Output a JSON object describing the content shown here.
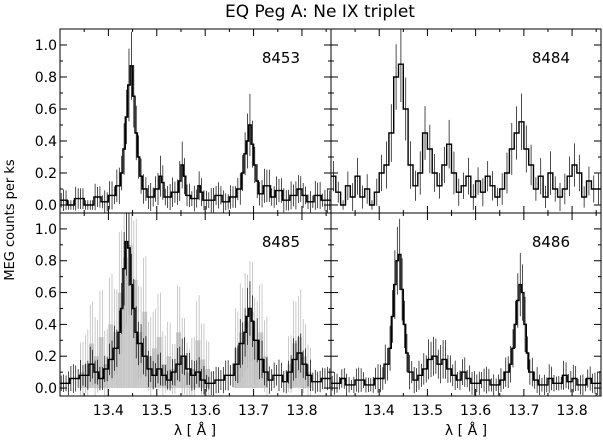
{
  "figure": {
    "title": "EQ Peg A: Ne IX triplet",
    "xlabel": "λ [ Å ]",
    "ylabel": "MEG counts per ks"
  },
  "chart_data": [
    {
      "type": "bar",
      "panel": "top-left",
      "label": "8453",
      "xlim": [
        13.3,
        13.86
      ],
      "ylim": [
        -0.05,
        1.1
      ],
      "yticks": [
        "0.0",
        "0.2",
        "0.4",
        "0.6",
        "0.8",
        "1.0"
      ],
      "xticks": [],
      "bin_width": 0.005,
      "segments": [
        [
          13.3,
          13.315,
          0.03
        ],
        [
          13.315,
          13.33,
          0.0
        ],
        [
          13.33,
          13.35,
          0.04
        ],
        [
          13.35,
          13.37,
          0.0
        ],
        [
          13.37,
          13.385,
          0.05
        ],
        [
          13.385,
          13.4,
          0.02
        ],
        [
          13.4,
          13.415,
          0.06
        ],
        [
          13.415,
          13.425,
          0.12
        ],
        [
          13.425,
          13.43,
          0.2
        ],
        [
          13.43,
          13.435,
          0.35
        ],
        [
          13.435,
          13.44,
          0.55
        ],
        [
          13.44,
          13.445,
          0.75
        ],
        [
          13.445,
          13.45,
          0.87
        ],
        [
          13.45,
          13.455,
          0.68
        ],
        [
          13.455,
          13.46,
          0.45
        ],
        [
          13.46,
          13.465,
          0.3
        ],
        [
          13.465,
          13.47,
          0.18
        ],
        [
          13.47,
          13.48,
          0.1
        ],
        [
          13.48,
          13.495,
          0.05
        ],
        [
          13.495,
          13.505,
          0.1
        ],
        [
          13.505,
          13.51,
          0.18
        ],
        [
          13.51,
          13.515,
          0.14
        ],
        [
          13.515,
          13.53,
          0.05
        ],
        [
          13.53,
          13.545,
          0.08
        ],
        [
          13.545,
          13.55,
          0.15
        ],
        [
          13.55,
          13.555,
          0.25
        ],
        [
          13.555,
          13.56,
          0.18
        ],
        [
          13.56,
          13.57,
          0.06
        ],
        [
          13.57,
          13.585,
          0.04
        ],
        [
          13.585,
          13.59,
          0.12
        ],
        [
          13.59,
          13.595,
          0.08
        ],
        [
          13.595,
          13.62,
          0.03
        ],
        [
          13.62,
          13.635,
          0.06
        ],
        [
          13.635,
          13.65,
          0.02
        ],
        [
          13.65,
          13.665,
          0.05
        ],
        [
          13.665,
          13.675,
          0.1
        ],
        [
          13.675,
          13.68,
          0.2
        ],
        [
          13.68,
          13.685,
          0.32
        ],
        [
          13.685,
          13.69,
          0.4
        ],
        [
          13.69,
          13.695,
          0.5
        ],
        [
          13.695,
          13.7,
          0.38
        ],
        [
          13.7,
          13.705,
          0.25
        ],
        [
          13.705,
          13.71,
          0.15
        ],
        [
          13.71,
          13.72,
          0.07
        ],
        [
          13.72,
          13.735,
          0.12
        ],
        [
          13.735,
          13.745,
          0.05
        ],
        [
          13.745,
          13.76,
          0.09
        ],
        [
          13.76,
          13.775,
          0.03
        ],
        [
          13.775,
          13.79,
          0.06
        ],
        [
          13.79,
          13.8,
          0.1
        ],
        [
          13.8,
          13.81,
          0.06
        ],
        [
          13.81,
          13.825,
          0.02
        ],
        [
          13.825,
          13.84,
          0.06
        ],
        [
          13.84,
          13.86,
          0.03
        ]
      ]
    },
    {
      "type": "bar",
      "panel": "top-right",
      "label": "8484",
      "xlim": [
        13.3,
        13.86
      ],
      "ylim": [
        -0.05,
        1.1
      ],
      "yticks": [],
      "xticks": [],
      "bin_width": 0.01,
      "segments": [
        [
          13.3,
          13.31,
          0.18
        ],
        [
          13.31,
          13.32,
          0.08
        ],
        [
          13.32,
          13.33,
          0.0
        ],
        [
          13.33,
          13.34,
          0.12
        ],
        [
          13.34,
          13.35,
          0.05
        ],
        [
          13.35,
          13.36,
          0.18
        ],
        [
          13.36,
          13.37,
          0.05
        ],
        [
          13.37,
          13.38,
          0.1
        ],
        [
          13.38,
          13.39,
          0.0
        ],
        [
          13.39,
          13.4,
          0.08
        ],
        [
          13.4,
          13.41,
          0.2
        ],
        [
          13.41,
          13.42,
          0.25
        ],
        [
          13.42,
          13.43,
          0.45
        ],
        [
          13.43,
          13.44,
          0.8
        ],
        [
          13.44,
          13.45,
          0.88
        ],
        [
          13.45,
          13.46,
          0.6
        ],
        [
          13.46,
          13.47,
          0.25
        ],
        [
          13.47,
          13.48,
          0.12
        ],
        [
          13.48,
          13.49,
          0.2
        ],
        [
          13.49,
          13.5,
          0.45
        ],
        [
          13.5,
          13.51,
          0.35
        ],
        [
          13.51,
          13.52,
          0.2
        ],
        [
          13.52,
          13.53,
          0.12
        ],
        [
          13.53,
          13.54,
          0.25
        ],
        [
          13.54,
          13.55,
          0.38
        ],
        [
          13.55,
          13.56,
          0.2
        ],
        [
          13.56,
          13.57,
          0.08
        ],
        [
          13.57,
          13.58,
          0.12
        ],
        [
          13.58,
          13.59,
          0.18
        ],
        [
          13.59,
          13.6,
          0.05
        ],
        [
          13.6,
          13.61,
          0.15
        ],
        [
          13.61,
          13.62,
          0.08
        ],
        [
          13.62,
          13.63,
          0.18
        ],
        [
          13.63,
          13.64,
          0.12
        ],
        [
          13.64,
          13.65,
          0.05
        ],
        [
          13.65,
          13.66,
          0.1
        ],
        [
          13.66,
          13.67,
          0.2
        ],
        [
          13.67,
          13.68,
          0.35
        ],
        [
          13.68,
          13.69,
          0.45
        ],
        [
          13.69,
          13.7,
          0.52
        ],
        [
          13.7,
          13.71,
          0.35
        ],
        [
          13.71,
          13.72,
          0.25
        ],
        [
          13.72,
          13.73,
          0.1
        ],
        [
          13.73,
          13.74,
          0.18
        ],
        [
          13.74,
          13.75,
          0.05
        ],
        [
          13.75,
          13.76,
          0.2
        ],
        [
          13.76,
          13.77,
          0.1
        ],
        [
          13.77,
          13.78,
          0.05
        ],
        [
          13.78,
          13.79,
          0.1
        ],
        [
          13.79,
          13.8,
          0.18
        ],
        [
          13.8,
          13.81,
          0.25
        ],
        [
          13.81,
          13.82,
          0.2
        ],
        [
          13.82,
          13.83,
          0.05
        ],
        [
          13.83,
          13.84,
          0.15
        ],
        [
          13.84,
          13.86,
          0.1
        ]
      ]
    },
    {
      "type": "bar",
      "panel": "bottom-left",
      "label": "8485",
      "xlim": [
        13.3,
        13.86
      ],
      "ylim": [
        -0.05,
        1.1
      ],
      "yticks": [
        "0.0",
        "0.2",
        "0.4",
        "0.6",
        "0.8",
        "1.0"
      ],
      "xticks": [
        "13.4",
        "13.5",
        "13.6",
        "13.7",
        "13.8"
      ],
      "bin_width": 0.005,
      "background_segments": [
        [
          13.3,
          13.34,
          0.0
        ],
        [
          13.34,
          13.35,
          0.1
        ],
        [
          13.35,
          13.36,
          0.15
        ],
        [
          13.36,
          13.37,
          0.28
        ],
        [
          13.37,
          13.38,
          0.2
        ],
        [
          13.38,
          13.39,
          0.32
        ],
        [
          13.39,
          13.4,
          0.15
        ],
        [
          13.4,
          13.41,
          0.4
        ],
        [
          13.41,
          13.42,
          0.35
        ],
        [
          13.42,
          13.43,
          0.6
        ],
        [
          13.43,
          13.44,
          0.82
        ],
        [
          13.44,
          13.45,
          0.9
        ],
        [
          13.45,
          13.46,
          0.68
        ],
        [
          13.46,
          13.47,
          0.35
        ],
        [
          13.47,
          13.48,
          0.48
        ],
        [
          13.48,
          13.49,
          0.2
        ],
        [
          13.49,
          13.5,
          0.25
        ],
        [
          13.5,
          13.51,
          0.32
        ],
        [
          13.51,
          13.52,
          0.15
        ],
        [
          13.52,
          13.53,
          0.2
        ],
        [
          13.53,
          13.54,
          0.12
        ],
        [
          13.54,
          13.55,
          0.35
        ],
        [
          13.55,
          13.56,
          0.2
        ],
        [
          13.56,
          13.57,
          0.1
        ],
        [
          13.57,
          13.58,
          0.12
        ],
        [
          13.58,
          13.59,
          0.3
        ],
        [
          13.59,
          13.6,
          0.18
        ],
        [
          13.6,
          13.61,
          0.12
        ],
        [
          13.61,
          13.66,
          0.0
        ],
        [
          13.66,
          13.67,
          0.25
        ],
        [
          13.67,
          13.68,
          0.35
        ],
        [
          13.68,
          13.69,
          0.42
        ],
        [
          13.69,
          13.7,
          0.48
        ],
        [
          13.7,
          13.71,
          0.3
        ],
        [
          13.71,
          13.72,
          0.35
        ],
        [
          13.72,
          13.73,
          0.2
        ],
        [
          13.73,
          13.77,
          0.0
        ],
        [
          13.77,
          13.78,
          0.15
        ],
        [
          13.78,
          13.79,
          0.28
        ],
        [
          13.79,
          13.8,
          0.32
        ],
        [
          13.8,
          13.81,
          0.2
        ],
        [
          13.81,
          13.82,
          0.1
        ],
        [
          13.82,
          13.86,
          0.0
        ]
      ],
      "segments": [
        [
          13.3,
          13.32,
          0.03
        ],
        [
          13.32,
          13.34,
          0.06
        ],
        [
          13.34,
          13.36,
          0.08
        ],
        [
          13.36,
          13.37,
          0.15
        ],
        [
          13.37,
          13.38,
          0.1
        ],
        [
          13.38,
          13.39,
          0.06
        ],
        [
          13.39,
          13.4,
          0.12
        ],
        [
          13.4,
          13.41,
          0.18
        ],
        [
          13.41,
          13.42,
          0.25
        ],
        [
          13.42,
          13.425,
          0.35
        ],
        [
          13.425,
          13.43,
          0.5
        ],
        [
          13.43,
          13.435,
          0.75
        ],
        [
          13.435,
          13.44,
          0.92
        ],
        [
          13.44,
          13.445,
          0.88
        ],
        [
          13.445,
          13.45,
          0.65
        ],
        [
          13.45,
          13.455,
          0.5
        ],
        [
          13.455,
          13.46,
          0.35
        ],
        [
          13.46,
          13.47,
          0.28
        ],
        [
          13.47,
          13.48,
          0.2
        ],
        [
          13.48,
          13.49,
          0.12
        ],
        [
          13.49,
          13.5,
          0.08
        ],
        [
          13.5,
          13.51,
          0.12
        ],
        [
          13.51,
          13.52,
          0.08
        ],
        [
          13.52,
          13.53,
          0.05
        ],
        [
          13.53,
          13.54,
          0.1
        ],
        [
          13.54,
          13.55,
          0.15
        ],
        [
          13.55,
          13.56,
          0.2
        ],
        [
          13.56,
          13.57,
          0.12
        ],
        [
          13.57,
          13.58,
          0.08
        ],
        [
          13.58,
          13.59,
          0.1
        ],
        [
          13.59,
          13.6,
          0.05
        ],
        [
          13.6,
          13.62,
          0.03
        ],
        [
          13.62,
          13.64,
          0.05
        ],
        [
          13.64,
          13.66,
          0.08
        ],
        [
          13.66,
          13.67,
          0.15
        ],
        [
          13.67,
          13.68,
          0.28
        ],
        [
          13.68,
          13.685,
          0.35
        ],
        [
          13.685,
          13.69,
          0.45
        ],
        [
          13.69,
          13.695,
          0.5
        ],
        [
          13.695,
          13.7,
          0.42
        ],
        [
          13.7,
          13.71,
          0.3
        ],
        [
          13.71,
          13.72,
          0.18
        ],
        [
          13.72,
          13.73,
          0.1
        ],
        [
          13.73,
          13.74,
          0.05
        ],
        [
          13.74,
          13.76,
          0.08
        ],
        [
          13.76,
          13.77,
          0.04
        ],
        [
          13.77,
          13.78,
          0.1
        ],
        [
          13.78,
          13.79,
          0.18
        ],
        [
          13.79,
          13.8,
          0.22
        ],
        [
          13.8,
          13.81,
          0.15
        ],
        [
          13.81,
          13.82,
          0.08
        ],
        [
          13.82,
          13.84,
          0.04
        ],
        [
          13.84,
          13.86,
          0.06
        ]
      ]
    },
    {
      "type": "bar",
      "panel": "bottom-right",
      "label": "8486",
      "xlim": [
        13.3,
        13.86
      ],
      "ylim": [
        -0.05,
        1.1
      ],
      "yticks": [],
      "xticks": [
        "13.4",
        "13.5",
        "13.6",
        "13.7",
        "13.8"
      ],
      "bin_width": 0.005,
      "segments": [
        [
          13.3,
          13.32,
          0.03
        ],
        [
          13.32,
          13.33,
          0.06
        ],
        [
          13.33,
          13.35,
          0.02
        ],
        [
          13.35,
          13.37,
          0.05
        ],
        [
          13.37,
          13.39,
          0.02
        ],
        [
          13.39,
          13.41,
          0.06
        ],
        [
          13.41,
          13.42,
          0.15
        ],
        [
          13.42,
          13.425,
          0.25
        ],
        [
          13.425,
          13.43,
          0.45
        ],
        [
          13.43,
          13.435,
          0.65
        ],
        [
          13.435,
          13.44,
          0.8
        ],
        [
          13.44,
          13.445,
          0.84
        ],
        [
          13.445,
          13.45,
          0.62
        ],
        [
          13.45,
          13.455,
          0.4
        ],
        [
          13.455,
          13.46,
          0.22
        ],
        [
          13.46,
          13.47,
          0.1
        ],
        [
          13.47,
          13.48,
          0.05
        ],
        [
          13.48,
          13.49,
          0.08
        ],
        [
          13.49,
          13.5,
          0.12
        ],
        [
          13.5,
          13.51,
          0.18
        ],
        [
          13.51,
          13.52,
          0.2
        ],
        [
          13.52,
          13.53,
          0.15
        ],
        [
          13.53,
          13.54,
          0.18
        ],
        [
          13.54,
          13.55,
          0.12
        ],
        [
          13.55,
          13.56,
          0.08
        ],
        [
          13.56,
          13.57,
          0.05
        ],
        [
          13.57,
          13.58,
          0.1
        ],
        [
          13.58,
          13.59,
          0.06
        ],
        [
          13.59,
          13.61,
          0.03
        ],
        [
          13.61,
          13.63,
          0.05
        ],
        [
          13.63,
          13.65,
          0.02
        ],
        [
          13.65,
          13.66,
          0.05
        ],
        [
          13.66,
          13.67,
          0.1
        ],
        [
          13.67,
          13.675,
          0.15
        ],
        [
          13.675,
          13.68,
          0.25
        ],
        [
          13.68,
          13.685,
          0.4
        ],
        [
          13.685,
          13.69,
          0.55
        ],
        [
          13.69,
          13.695,
          0.65
        ],
        [
          13.695,
          13.7,
          0.6
        ],
        [
          13.7,
          13.705,
          0.4
        ],
        [
          13.705,
          13.71,
          0.22
        ],
        [
          13.71,
          13.72,
          0.1
        ],
        [
          13.72,
          13.73,
          0.05
        ],
        [
          13.73,
          13.75,
          0.02
        ],
        [
          13.75,
          13.76,
          0.06
        ],
        [
          13.76,
          13.78,
          0.03
        ],
        [
          13.78,
          13.79,
          0.08
        ],
        [
          13.79,
          13.8,
          0.04
        ],
        [
          13.8,
          13.81,
          0.06
        ],
        [
          13.81,
          13.83,
          0.02
        ],
        [
          13.83,
          13.84,
          0.06
        ],
        [
          13.84,
          13.86,
          0.03
        ]
      ]
    }
  ]
}
